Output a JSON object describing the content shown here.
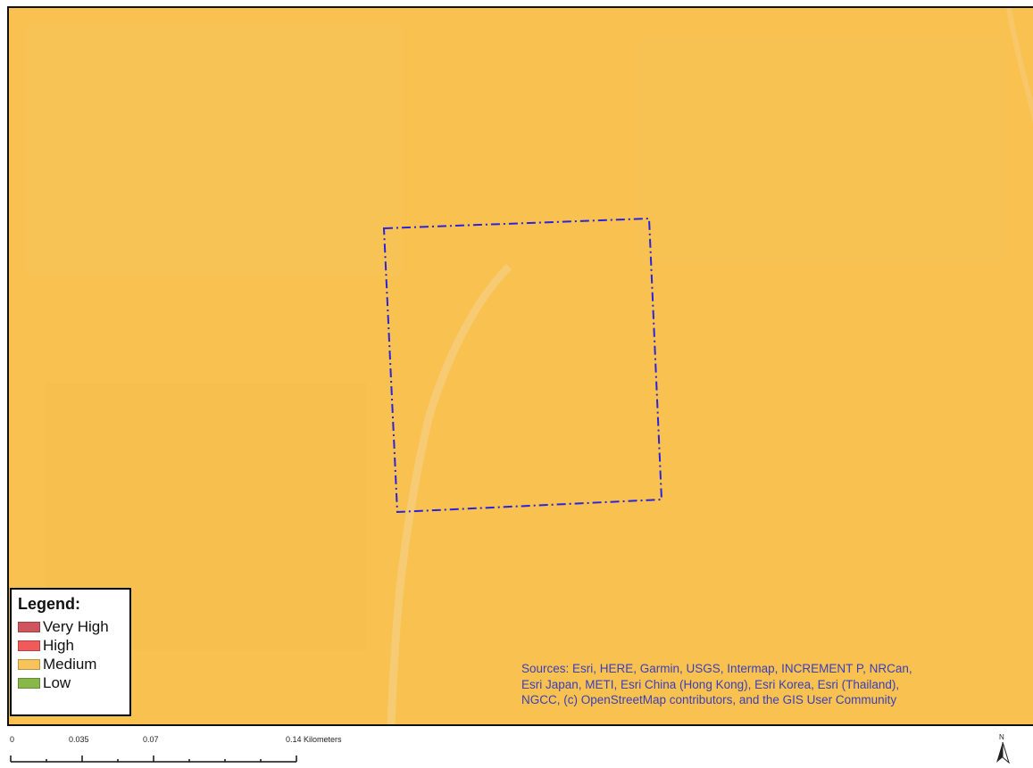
{
  "map": {
    "background_color": "#f8c150",
    "road_color": "#f6cc7a",
    "boundary_color": "#2a24d9"
  },
  "legend": {
    "title": "Legend:",
    "items": [
      {
        "label": "Very High",
        "color": "#d0545e"
      },
      {
        "label": "High",
        "color": "#f05a5a"
      },
      {
        "label": "Medium",
        "color": "#f7c35a"
      },
      {
        "label": "Low",
        "color": "#89b84a"
      }
    ]
  },
  "attribution": {
    "line1": "Sources: Esri, HERE, Garmin, USGS, Intermap, INCREMENT P, NRCan,",
    "line2": "Esri Japan, METI, Esri China (Hong Kong), Esri Korea, Esri (Thailand),",
    "line3": "NGCC, (c) OpenStreetMap contributors, and the GIS User Community"
  },
  "scalebar": {
    "labels": [
      "0",
      "0.035",
      "0.07",
      "0.14 Kilometers"
    ]
  },
  "north_arrow": {
    "label": "N"
  }
}
